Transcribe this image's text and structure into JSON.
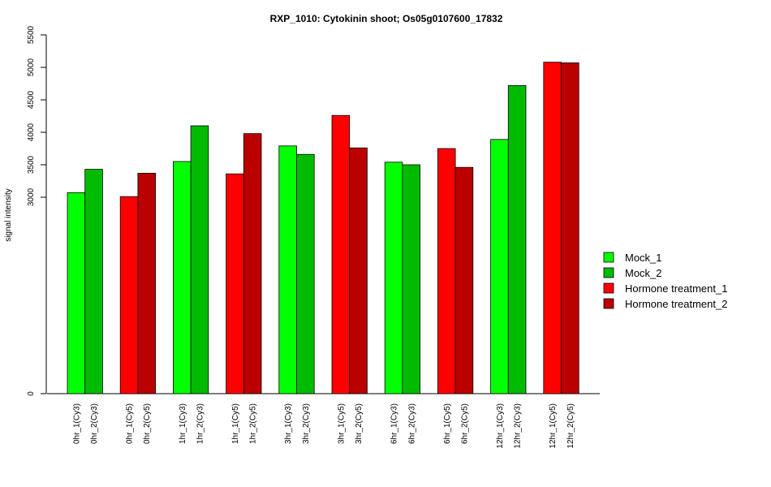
{
  "chart_data": {
    "type": "bar",
    "title": "RXP_1010: Cytokinin shoot; Os05g0107600_17832",
    "xlabel": "",
    "ylabel": "signal intensity",
    "y_ticks": [
      "0",
      "3000",
      "3500",
      "4000",
      "4500",
      "5000",
      "5500"
    ],
    "y_scale": "broken axis: 0 then 3000–5500",
    "legend_position": "right",
    "series_legend": [
      {
        "name": "Mock_1",
        "color": "#00ff00"
      },
      {
        "name": "Mock_2",
        "color": "#00bb00"
      },
      {
        "name": "Hormone treatment_1",
        "color": "#ff0000"
      },
      {
        "name": "Hormone treatment_2",
        "color": "#bb0000"
      }
    ],
    "groups": [
      {
        "bars": [
          {
            "label": "0hr_1(Cy3)",
            "value": 3070,
            "series": "Mock_1"
          },
          {
            "label": "0hr_2(Cy3)",
            "value": 3430,
            "series": "Mock_2"
          }
        ]
      },
      {
        "bars": [
          {
            "label": "0hr_1(Cy5)",
            "value": 3010,
            "series": "Hormone treatment_1"
          },
          {
            "label": "0hr_2(Cy5)",
            "value": 3370,
            "series": "Hormone treatment_2"
          }
        ]
      },
      {
        "bars": [
          {
            "label": "1hr_1(Cy3)",
            "value": 3550,
            "series": "Mock_1"
          },
          {
            "label": "1hr_2(Cy3)",
            "value": 4100,
            "series": "Mock_2"
          }
        ]
      },
      {
        "bars": [
          {
            "label": "1hr_1(Cy5)",
            "value": 3360,
            "series": "Hormone treatment_1"
          },
          {
            "label": "1hr_2(Cy5)",
            "value": 3980,
            "series": "Hormone treatment_2"
          }
        ]
      },
      {
        "bars": [
          {
            "label": "3hr_1(Cy3)",
            "value": 3790,
            "series": "Mock_1"
          },
          {
            "label": "3hr_2(Cy3)",
            "value": 3660,
            "series": "Mock_2"
          }
        ]
      },
      {
        "bars": [
          {
            "label": "3hr_1(Cy5)",
            "value": 4260,
            "series": "Hormone treatment_1"
          },
          {
            "label": "3hr_2(Cy5)",
            "value": 3760,
            "series": "Hormone treatment_2"
          }
        ]
      },
      {
        "bars": [
          {
            "label": "6hr_1(Cy3)",
            "value": 3540,
            "series": "Mock_1"
          },
          {
            "label": "6hr_2(Cy3)",
            "value": 3500,
            "series": "Mock_2"
          }
        ]
      },
      {
        "bars": [
          {
            "label": "6hr_1(Cy5)",
            "value": 3750,
            "series": "Hormone treatment_1"
          },
          {
            "label": "6hr_2(Cy5)",
            "value": 3460,
            "series": "Hormone treatment_2"
          }
        ]
      },
      {
        "bars": [
          {
            "label": "12hr_1(Cy3)",
            "value": 3890,
            "series": "Mock_1"
          },
          {
            "label": "12hr_2(Cy3)",
            "value": 4720,
            "series": "Mock_2"
          }
        ]
      },
      {
        "bars": [
          {
            "label": "12hr_1(Cy5)",
            "value": 5080,
            "series": "Hormone treatment_1"
          },
          {
            "label": "12hr_2(Cy5)",
            "value": 5070,
            "series": "Hormone treatment_2"
          }
        ]
      }
    ]
  }
}
